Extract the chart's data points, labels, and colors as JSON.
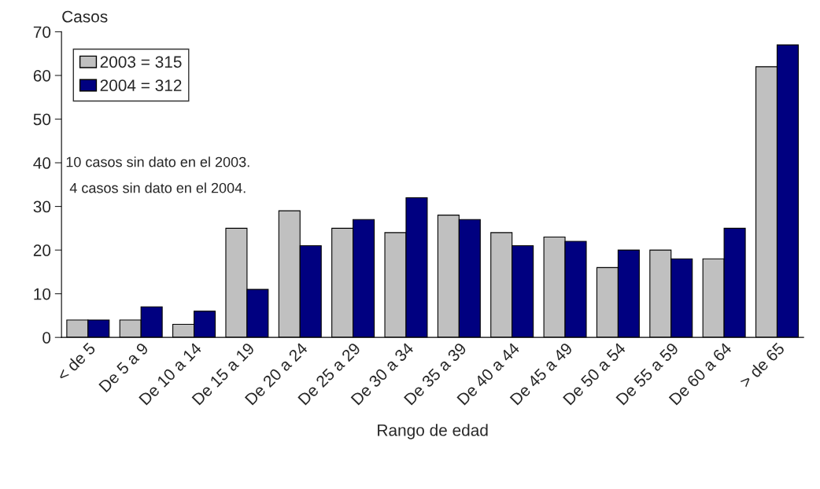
{
  "chart_data": {
    "type": "bar",
    "ylabel": "Casos",
    "xlabel": "Rango de edad",
    "categories": [
      "< de 5",
      "De 5 a 9",
      "De 10 a 14",
      "De 15 a 19",
      "De 20 a 24",
      "De 25 a 29",
      "De 30 a 34",
      "De 35 a 39",
      "De 40 a 44",
      "De 45 a 49",
      "De 50 a 54",
      "De 55 a 59",
      "De 60 a 64",
      "> de 65"
    ],
    "series": [
      {
        "name": "2003 = 315",
        "color": "#c0c0c0",
        "values": [
          4,
          4,
          3,
          25,
          29,
          25,
          24,
          28,
          24,
          23,
          16,
          20,
          18,
          62
        ]
      },
      {
        "name": "2004 = 312",
        "color": "#000080",
        "values": [
          4,
          7,
          6,
          11,
          21,
          27,
          32,
          27,
          21,
          22,
          20,
          18,
          25,
          67
        ]
      }
    ],
    "ylim": [
      0,
      70
    ],
    "yticks": [
      0,
      10,
      20,
      30,
      40,
      50,
      60,
      70
    ],
    "annotations": [
      "10 casos sin dato en el 2003.",
      "4 casos sin dato en el 2004."
    ],
    "legend": "top left",
    "grid": false
  }
}
